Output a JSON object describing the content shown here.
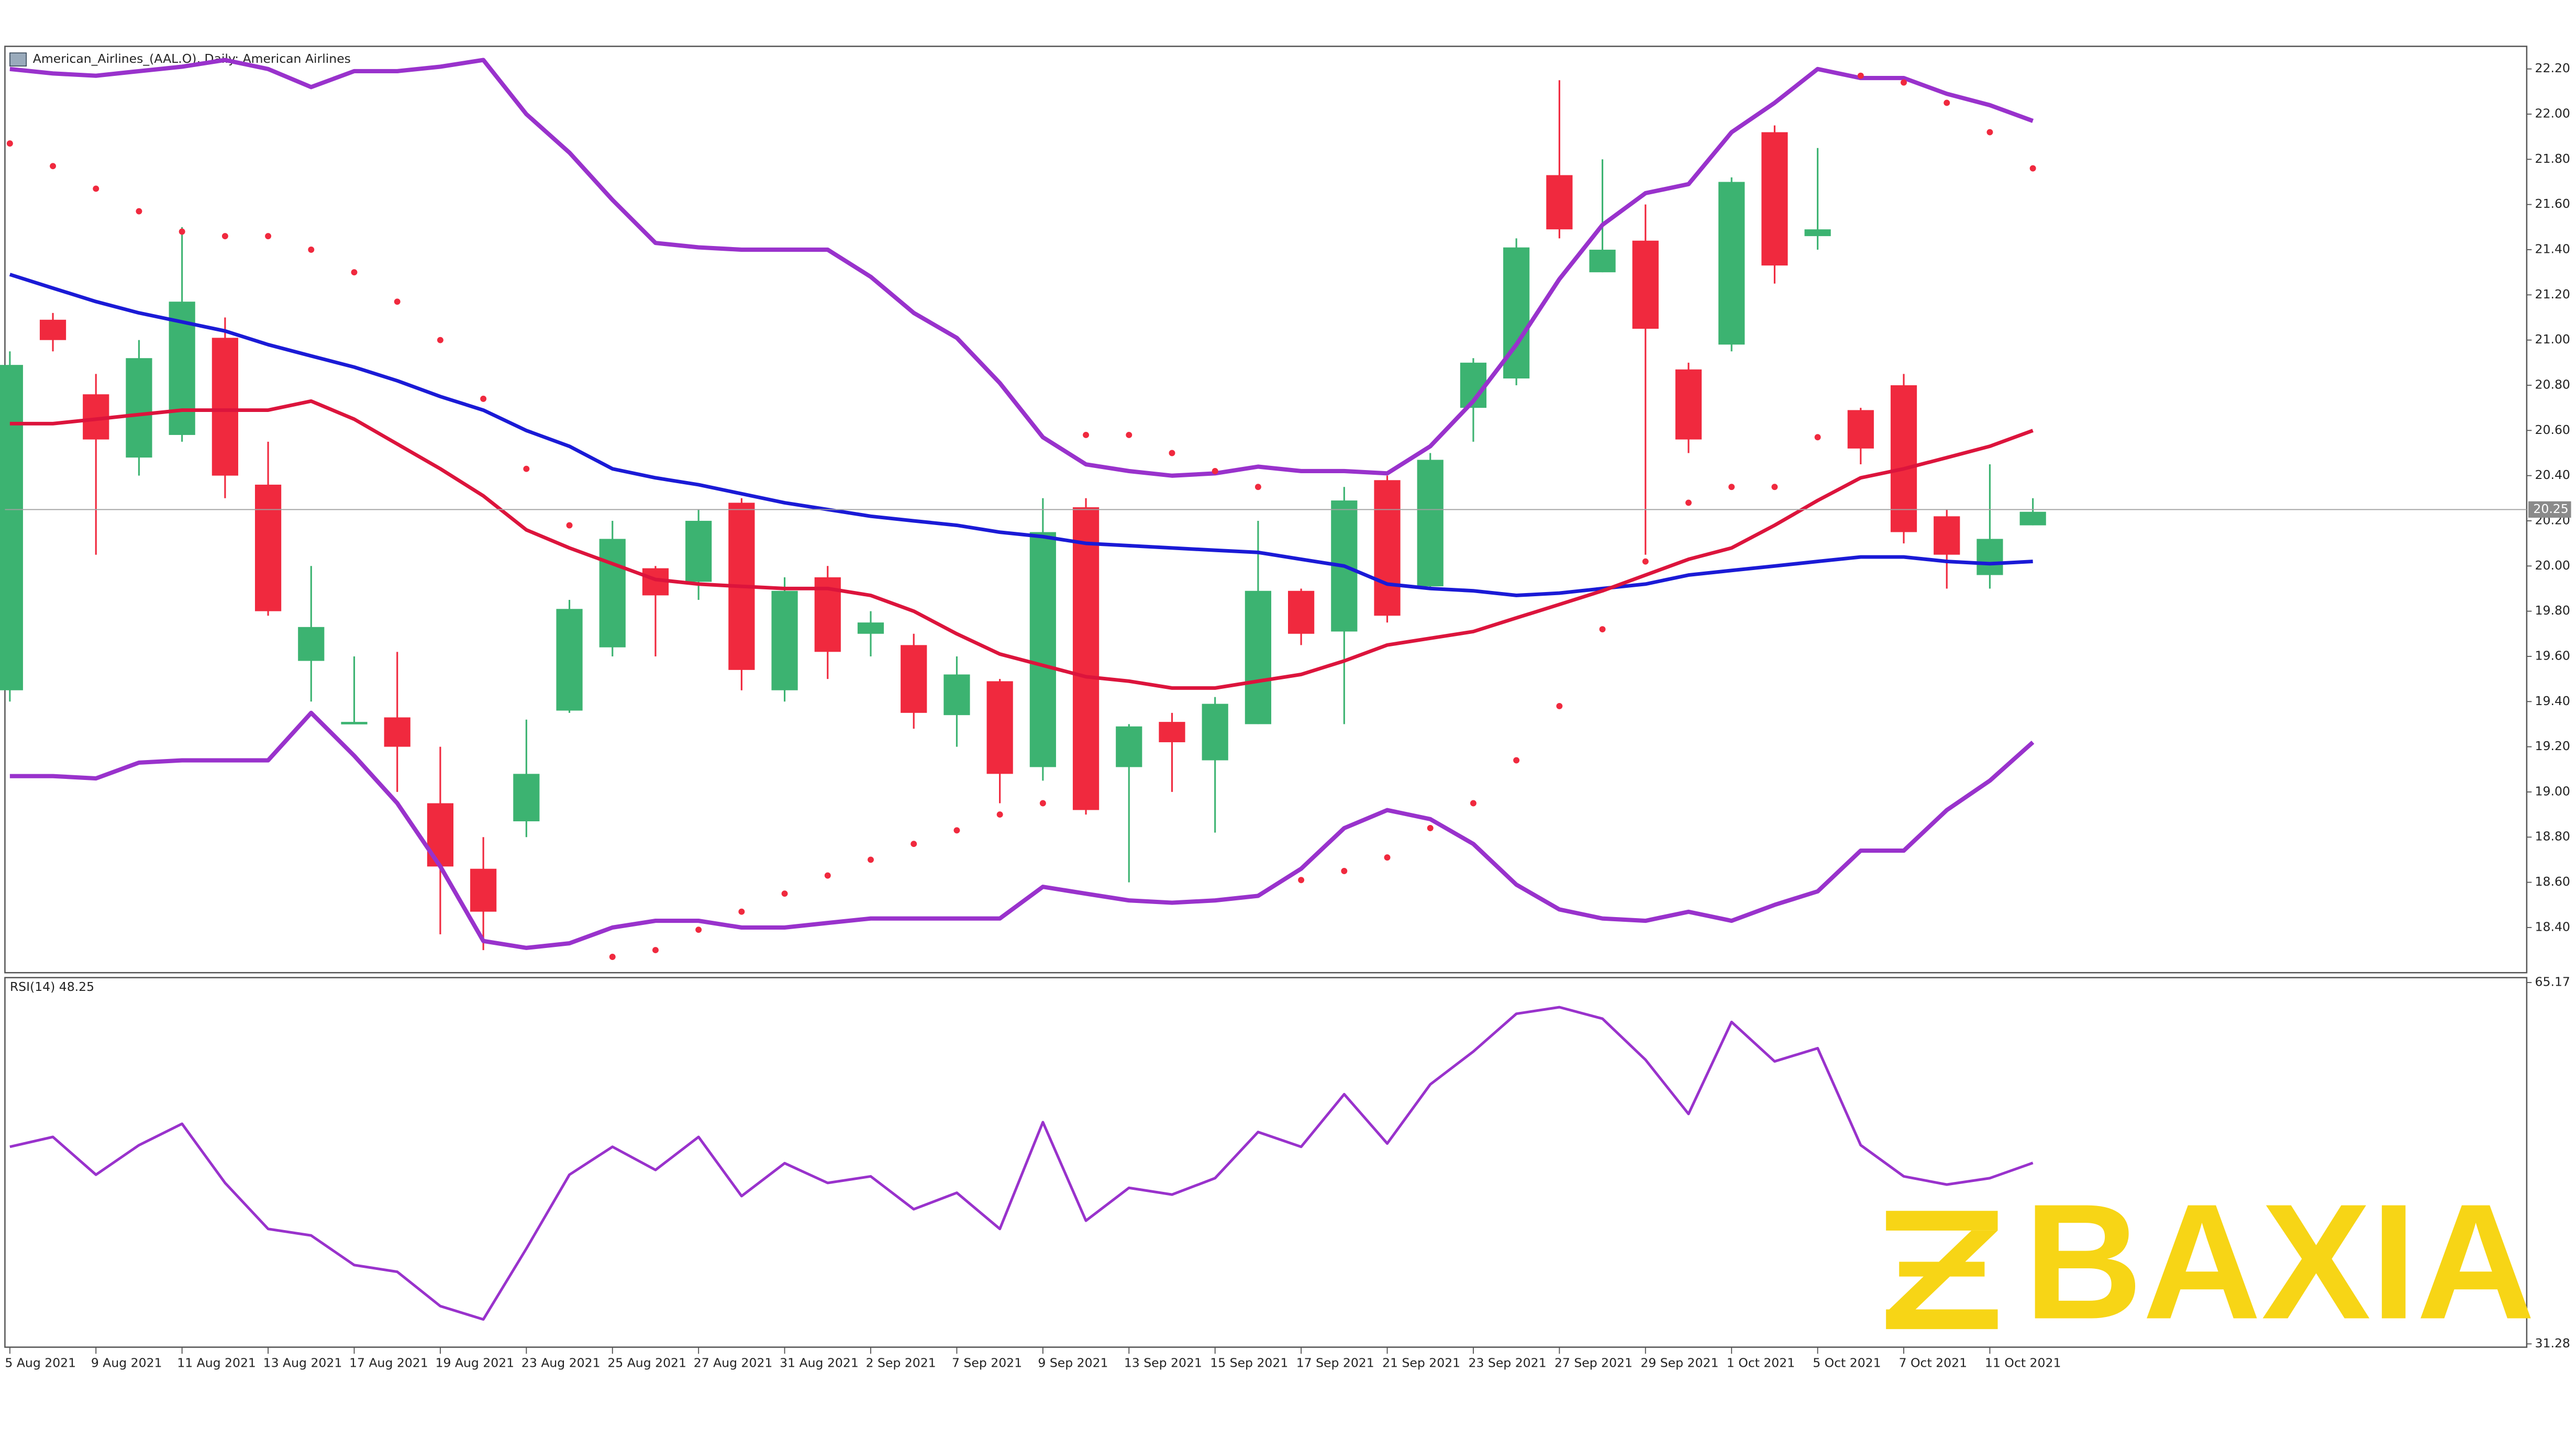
{
  "chart_data": [
    {
      "type": "candlestick",
      "title": "American_Airlines_(AAL.O), Daily: American Airlines",
      "categories": [
        "5 Aug 2021",
        null,
        "9 Aug 2021",
        null,
        "11 Aug 2021",
        null,
        "13 Aug 2021",
        null,
        "17 Aug 2021",
        null,
        "19 Aug 2021",
        null,
        "23 Aug 2021",
        null,
        "25 Aug 2021",
        null,
        "27 Aug 2021",
        null,
        "31 Aug 2021",
        null,
        "2 Sep 2021",
        null,
        "7 Sep 2021",
        null,
        "9 Sep 2021",
        null,
        "13 Sep 2021",
        null,
        "15 Sep 2021",
        null,
        "17 Sep 2021",
        null,
        "21 Sep 2021",
        null,
        "23 Sep 2021",
        null,
        "27 Sep 2021",
        null,
        "29 Sep 2021",
        null,
        "1 Oct 2021",
        null,
        "5 Oct 2021",
        null,
        "7 Oct 2021",
        null,
        "11 Oct 2021",
        null
      ],
      "open": [
        19.45,
        21.09,
        20.76,
        20.48,
        20.58,
        21.01,
        20.36,
        19.58,
        19.3,
        19.33,
        18.95,
        18.66,
        18.87,
        19.36,
        19.64,
        19.99,
        19.93,
        20.28,
        19.45,
        19.95,
        19.7,
        19.65,
        19.34,
        19.49,
        19.11,
        20.26,
        19.11,
        19.31,
        19.14,
        19.3,
        19.89,
        19.71,
        20.38,
        19.91,
        20.7,
        20.83,
        21.73,
        21.3,
        21.44,
        20.87,
        20.98,
        21.92,
        21.46,
        20.69,
        20.8,
        20.22,
        19.96,
        20.18
      ],
      "high": [
        20.95,
        21.12,
        20.85,
        21.0,
        21.5,
        21.1,
        20.55,
        20.0,
        19.6,
        19.62,
        19.2,
        18.8,
        19.32,
        19.85,
        20.2,
        20.0,
        20.25,
        20.3,
        19.95,
        20.0,
        19.8,
        19.7,
        19.6,
        19.5,
        20.3,
        20.3,
        19.3,
        19.35,
        19.42,
        20.2,
        19.9,
        20.35,
        20.4,
        20.5,
        20.92,
        21.45,
        22.15,
        21.8,
        21.6,
        20.9,
        21.72,
        21.95,
        21.85,
        20.7,
        20.85,
        20.25,
        20.45,
        20.3
      ],
      "low": [
        19.4,
        20.95,
        20.05,
        20.4,
        20.55,
        20.3,
        19.78,
        19.4,
        19.3,
        19.0,
        18.37,
        18.3,
        18.8,
        19.35,
        19.6,
        19.6,
        19.85,
        19.45,
        19.4,
        19.5,
        19.6,
        19.28,
        19.2,
        18.95,
        19.05,
        18.9,
        18.6,
        19.0,
        18.82,
        19.3,
        19.65,
        19.3,
        19.75,
        19.9,
        20.55,
        20.8,
        21.45,
        21.3,
        20.05,
        20.5,
        20.95,
        21.25,
        21.4,
        20.45,
        20.1,
        19.9,
        19.9,
        20.18
      ],
      "close": [
        20.89,
        21.0,
        20.56,
        20.92,
        21.17,
        20.4,
        19.8,
        19.73,
        19.31,
        19.2,
        18.67,
        18.47,
        19.08,
        19.81,
        20.12,
        19.87,
        20.2,
        19.54,
        19.89,
        19.62,
        19.75,
        19.35,
        19.52,
        19.08,
        20.15,
        18.92,
        19.29,
        19.22,
        19.39,
        19.89,
        19.7,
        20.29,
        19.78,
        20.47,
        20.9,
        21.41,
        21.49,
        21.4,
        21.05,
        20.56,
        21.7,
        21.33,
        21.49,
        20.52,
        20.15,
        20.05,
        20.12,
        20.24
      ],
      "up_color": "#3cb371",
      "down_color": "#f0293e",
      "lines": [
        {
          "color": "#1a1ad6",
          "width": 2.2,
          "values": [
            21.29,
            21.23,
            21.17,
            21.12,
            21.08,
            21.04,
            20.98,
            20.93,
            20.88,
            20.82,
            20.75,
            20.69,
            20.6,
            20.53,
            20.43,
            20.39,
            20.36,
            20.32,
            20.28,
            20.25,
            20.22,
            20.2,
            20.18,
            20.15,
            20.13,
            20.1,
            20.09,
            20.08,
            20.07,
            20.06,
            20.03,
            20.0,
            19.92,
            19.9,
            19.89,
            19.87,
            19.88,
            19.9,
            19.92,
            19.96,
            19.98,
            20.0,
            20.02,
            20.04,
            20.04,
            20.02,
            20.01,
            20.02
          ]
        },
        {
          "color": "#dc143c",
          "width": 2.2,
          "values": [
            20.63,
            20.63,
            20.65,
            20.67,
            20.69,
            20.69,
            20.69,
            20.73,
            20.65,
            20.54,
            20.43,
            20.31,
            20.16,
            20.08,
            20.01,
            19.94,
            19.92,
            19.91,
            19.9,
            19.9,
            19.87,
            19.8,
            19.7,
            19.61,
            19.56,
            19.51,
            19.49,
            19.46,
            19.46,
            19.49,
            19.52,
            19.58,
            19.65,
            19.68,
            19.71,
            19.77,
            19.83,
            19.89,
            19.96,
            20.03,
            20.08,
            20.18,
            20.29,
            20.39,
            20.43,
            20.48,
            20.53,
            20.6
          ]
        },
        {
          "color": "#9932cc",
          "width": 2.6,
          "values": [
            22.2,
            22.18,
            22.17,
            22.19,
            22.21,
            22.24,
            22.2,
            22.12,
            22.19,
            22.19,
            22.21,
            22.24,
            22.0,
            21.83,
            21.62,
            21.43,
            21.41,
            21.4,
            21.4,
            21.4,
            21.28,
            21.12,
            21.01,
            20.81,
            20.57,
            20.45,
            20.42,
            20.4,
            20.41,
            20.44,
            20.42,
            20.42,
            20.41,
            20.53,
            20.73,
            20.98,
            21.27,
            21.51,
            21.65,
            21.69,
            21.92,
            22.05,
            22.2,
            22.16,
            22.16,
            22.09,
            22.04,
            21.97
          ]
        },
        {
          "color": "#9932cc",
          "width": 2.6,
          "values": [
            19.07,
            19.07,
            19.06,
            19.13,
            19.14,
            19.14,
            19.14,
            19.35,
            19.16,
            18.95,
            18.67,
            18.34,
            18.31,
            18.33,
            18.4,
            18.43,
            18.43,
            18.4,
            18.4,
            18.42,
            18.44,
            18.44,
            18.44,
            18.44,
            18.58,
            18.55,
            18.52,
            18.51,
            18.52,
            18.54,
            18.66,
            18.84,
            18.92,
            18.88,
            18.77,
            18.59,
            18.48,
            18.44,
            18.43,
            18.47,
            18.43,
            18.5,
            18.56,
            18.74,
            18.74,
            18.92,
            19.05,
            19.22
          ]
        }
      ],
      "sar": {
        "color": "#f0293e",
        "values": [
          21.87,
          21.77,
          21.67,
          21.57,
          21.48,
          21.46,
          21.46,
          21.4,
          21.3,
          21.17,
          21.0,
          20.74,
          20.43,
          20.18,
          18.27,
          18.3,
          18.39,
          18.47,
          18.55,
          18.63,
          18.7,
          18.77,
          18.83,
          18.9,
          18.95,
          20.58,
          20.58,
          20.5,
          20.42,
          20.35,
          18.61,
          18.65,
          18.71,
          18.84,
          18.95,
          19.14,
          19.38,
          19.72,
          20.02,
          20.28,
          20.35,
          20.35,
          20.57,
          22.17,
          22.14,
          22.05,
          21.92,
          21.76
        ]
      },
      "price_label": {
        "value": 20.25,
        "label": "20.25"
      },
      "ylim": [
        18.2,
        22.3
      ],
      "yticks": [
        {
          "value": 18.4,
          "label": "18.40"
        },
        {
          "value": 18.6,
          "label": "18.60"
        },
        {
          "value": 18.8,
          "label": "18.80"
        },
        {
          "value": 19.0,
          "label": "19.00"
        },
        {
          "value": 19.2,
          "label": "19.20"
        },
        {
          "value": 19.4,
          "label": "19.40"
        },
        {
          "value": 19.6,
          "label": "19.60"
        },
        {
          "value": 19.8,
          "label": "19.80"
        },
        {
          "value": 20.0,
          "label": "20.00"
        },
        {
          "value": 20.2,
          "label": "20.20"
        },
        {
          "value": 20.4,
          "label": "20.40"
        },
        {
          "value": 20.6,
          "label": "20.60"
        },
        {
          "value": 20.8,
          "label": "20.80"
        },
        {
          "value": 21.0,
          "label": "21.00"
        },
        {
          "value": 21.2,
          "label": "21.20"
        },
        {
          "value": 21.4,
          "label": "21.40"
        },
        {
          "value": 21.6,
          "label": "21.60"
        },
        {
          "value": 21.8,
          "label": "21.80"
        },
        {
          "value": 22.0,
          "label": "22.00"
        },
        {
          "value": 22.2,
          "label": "22.20"
        }
      ]
    },
    {
      "type": "line",
      "title": "RSI(14) 48.25",
      "color": "#9932cc",
      "values": [
        49.76,
        50.69,
        47.14,
        49.92,
        51.92,
        46.37,
        42.06,
        41.44,
        38.67,
        38.05,
        34.82,
        33.58,
        40.21,
        47.14,
        49.76,
        47.6,
        50.69,
        45.14,
        48.22,
        46.37,
        46.99,
        43.91,
        45.45,
        42.06,
        52.07,
        42.83,
        45.91,
        45.29,
        46.83,
        51.15,
        49.76,
        54.69,
        50.07,
        55.62,
        58.7,
        62.24,
        62.86,
        61.78,
        57.93,
        52.84,
        61.47,
        57.77,
        59.01,
        49.92,
        46.99,
        46.22,
        46.83,
        48.25
      ],
      "ylim": [
        31.28,
        65.17
      ],
      "yticks": [
        65.17,
        31.28
      ]
    }
  ],
  "watermark": "BAXIA"
}
